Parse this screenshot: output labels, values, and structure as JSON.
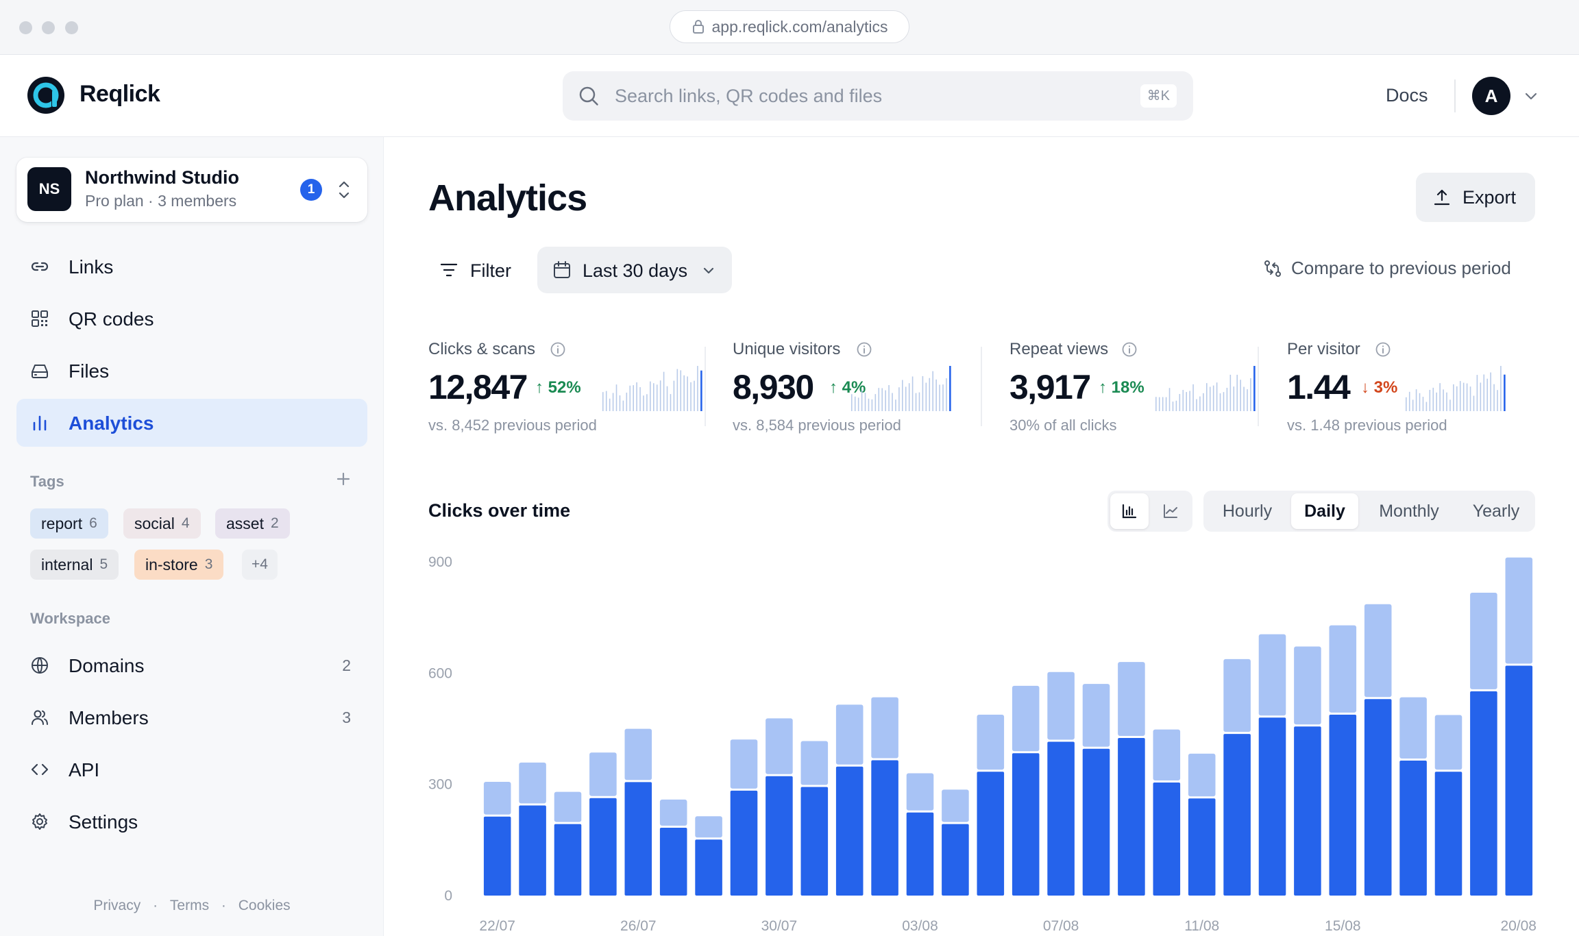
{
  "browser": {
    "url": "app.reqlick.com/analytics"
  },
  "brand": {
    "name": "Reqlick"
  },
  "search": {
    "placeholder": "Search links, QR codes and files",
    "shortcut": "⌘K"
  },
  "header": {
    "docs_label": "Docs",
    "avatar_initial": "A"
  },
  "workspace": {
    "initials": "NS",
    "name": "Northwind Studio",
    "subtitle": "Pro plan · 3 members",
    "notification_count": "1"
  },
  "nav": {
    "primary": [
      {
        "label": "Links",
        "icon": "link-icon"
      },
      {
        "label": "QR codes",
        "icon": "qr-code-icon"
      },
      {
        "label": "Files",
        "icon": "drive-icon"
      },
      {
        "label": "Analytics",
        "icon": "bar-chart-icon",
        "active": true
      }
    ],
    "workspace_label": "Workspace",
    "workspace": [
      {
        "label": "Domains",
        "count": "2",
        "icon": "globe-icon"
      },
      {
        "label": "Members",
        "count": "3",
        "icon": "users-icon"
      },
      {
        "label": "API",
        "count": "",
        "icon": "code-icon"
      },
      {
        "label": "Settings",
        "count": "",
        "icon": "gear-icon"
      }
    ]
  },
  "tags": {
    "label": "Tags",
    "items": [
      {
        "name": "report",
        "count": "6",
        "color": "#dbe7f7"
      },
      {
        "name": "social",
        "count": "4",
        "color": "#efe7ea"
      },
      {
        "name": "asset",
        "count": "2",
        "color": "#e8e3ef"
      },
      {
        "name": "internal",
        "count": "5",
        "color": "#e9eaed"
      },
      {
        "name": "in-store",
        "count": "3",
        "color": "#fbdcc5"
      }
    ],
    "more": "+4"
  },
  "footer": {
    "privacy": "Privacy",
    "terms": "Terms",
    "cookies": "Cookies",
    "separator": "·"
  },
  "page": {
    "title": "Analytics",
    "export_label": "Export"
  },
  "toolbar": {
    "filter_label": "Filter",
    "range_label": "Last 30 days",
    "compare_label": "Compare to previous period"
  },
  "stats": [
    {
      "label": "Clicks & scans",
      "value": "12,847",
      "delta": "52%",
      "direction": "up",
      "sub": "vs. 8,452 previous period"
    },
    {
      "label": "Unique visitors",
      "value": "8,930",
      "delta": "4%",
      "direction": "up",
      "sub": "vs. 8,584 previous period"
    },
    {
      "label": "Repeat views",
      "value": "3,917",
      "delta": "18%",
      "direction": "up",
      "sub": "30% of all clicks"
    },
    {
      "label": "Per visitor",
      "value": "1.44",
      "delta": "3%",
      "direction": "down",
      "sub": "vs. 1.48 previous period"
    }
  ],
  "chart_section": {
    "title": "Clicks over time",
    "granularity": [
      "Hourly",
      "Daily",
      "Monthly",
      "Yearly"
    ],
    "selected_granularity": "Daily"
  },
  "colors": {
    "accent": "#2563eb",
    "accent_light": "#a8c3f5",
    "up": "#1a8a52",
    "down": "#d2461c"
  },
  "chart_data": {
    "type": "bar",
    "stacked": true,
    "ylim": [
      0,
      900
    ],
    "yticks": [
      "0",
      "300",
      "600",
      "900"
    ],
    "xtick_labels": [
      "22/07",
      "26/07",
      "30/07",
      "03/08",
      "07/08",
      "11/08",
      "15/08",
      "20/08"
    ],
    "xtick_indices": [
      0,
      4,
      8,
      12,
      16,
      20,
      24,
      29
    ],
    "categories": [
      "22/07",
      "23/07",
      "24/07",
      "25/07",
      "26/07",
      "27/07",
      "28/07",
      "29/07",
      "30/07",
      "31/07",
      "01/08",
      "02/08",
      "03/08",
      "04/08",
      "05/08",
      "06/08",
      "07/08",
      "08/08",
      "09/08",
      "10/08",
      "11/08",
      "12/08",
      "13/08",
      "14/08",
      "15/08",
      "16/08",
      "17/08",
      "18/08",
      "19/08",
      "20/08"
    ],
    "series": [
      {
        "values": [
          213,
          243,
          193,
          263,
          306,
          183,
          151,
          283,
          322,
          293,
          348,
          365,
          224,
          193,
          334,
          384,
          415,
          396,
          425,
          305,
          262,
          436,
          480,
          456,
          488,
          530,
          364,
          334,
          551,
          620
        ]
      },
      {
        "values": [
          92,
          114,
          85,
          121,
          142,
          74,
          61,
          136,
          154,
          122,
          165,
          168,
          104,
          91,
          152,
          180,
          186,
          173,
          203,
          141,
          119,
          200,
          223,
          214,
          239,
          254,
          169,
          151,
          264,
          290
        ]
      }
    ]
  }
}
